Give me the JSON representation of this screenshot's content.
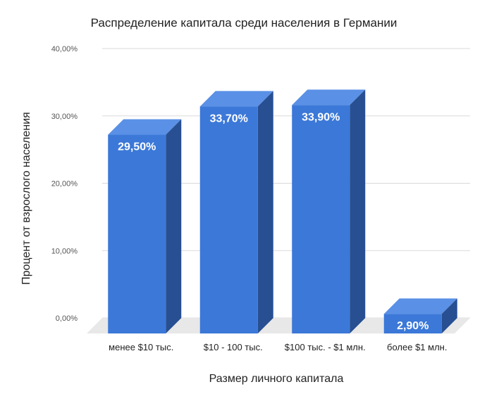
{
  "chart_data": {
    "type": "bar",
    "title": "Распределение капитала среди населения в Германии",
    "xlabel": "Размер личного капитала",
    "ylabel": "Процент от взрослого населения",
    "categories": [
      "менее $10 тыс.",
      "$10  - 100 тыс.",
      "$100 тыс. - $1 млн.",
      "более $1 млн."
    ],
    "values": [
      29.5,
      33.7,
      33.9,
      2.9
    ],
    "data_labels": [
      "29,50%",
      "33,70%",
      "33,90%",
      "2,90%"
    ],
    "yticks": [
      "0,00%",
      "10,00%",
      "20,00%",
      "30,00%",
      "40,00%"
    ],
    "ylim": [
      0,
      40
    ],
    "grid": true,
    "style": "3d",
    "colors": {
      "front": "#3b78d8",
      "top": "#5a90e6",
      "side": "#274f92",
      "floor": "#e8e8e8",
      "grid": "#d9d9d9"
    }
  }
}
